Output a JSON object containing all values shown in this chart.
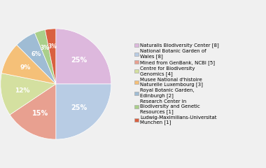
{
  "labels": [
    "Naturalis Biodiversity Center [8]",
    "National Botanic Garden of\nWales [8]",
    "Mined from GenBank, NCBI [5]",
    "Centre for Biodiversity\nGenomics [4]",
    "Musee National d'histoire\nNaturelle Luxembourg [3]",
    "Royal Botanic Garden,\nEdinburgh [2]",
    "Research Center in\nBiodiversity and Genetic\nResources [1]",
    "Ludwig-Maximilians-Universitat\nMunchen [1]"
  ],
  "values": [
    8,
    8,
    5,
    4,
    3,
    2,
    1,
    1
  ],
  "colors": [
    "#ddb8dd",
    "#b8cce4",
    "#e8a090",
    "#d4e0a0",
    "#f5c078",
    "#9fbcd4",
    "#aacf8a",
    "#d96040"
  ],
  "pct_labels": [
    "25%",
    "25%",
    "15%",
    "12%",
    "9%",
    "6%",
    "3%",
    "3%"
  ],
  "startangle": 90,
  "background_color": "#f0f0f0"
}
